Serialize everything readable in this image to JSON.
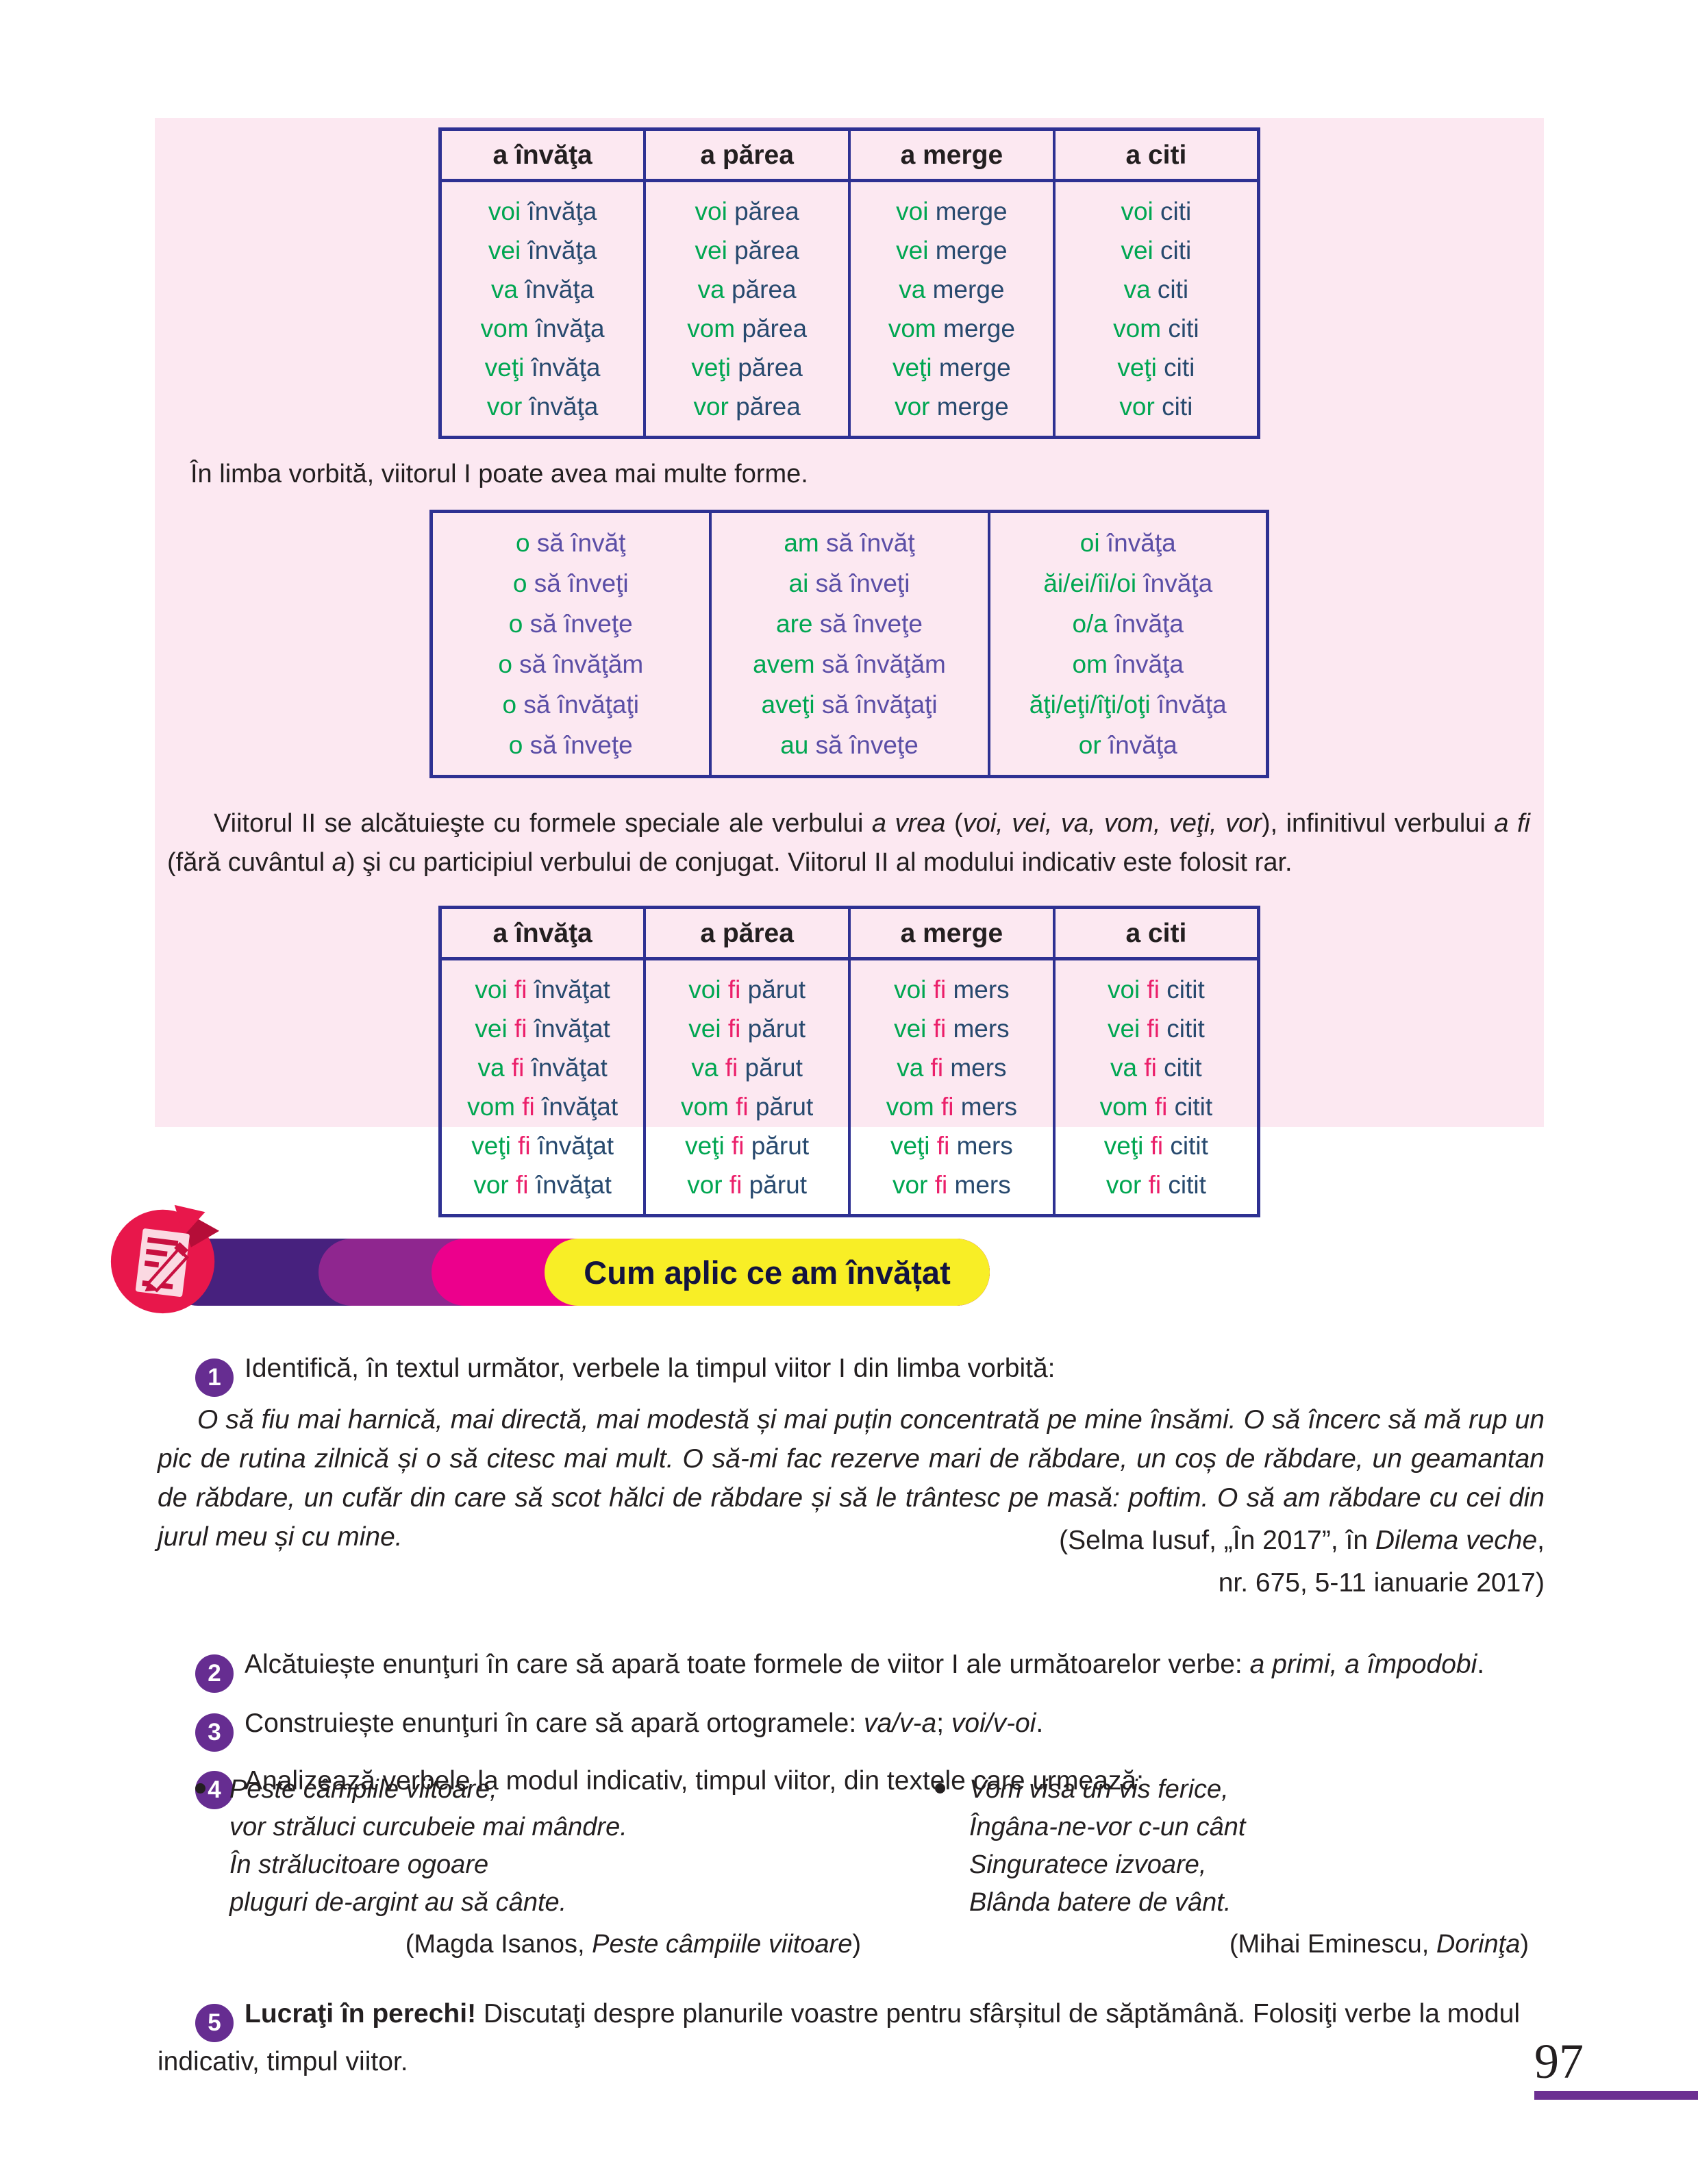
{
  "colors": {
    "green": "#00a651",
    "navy": "#27496e",
    "violet": "#5b4ea6",
    "magenta": "#eb1f6a",
    "table_border": "#2e3192",
    "panel_bg": "#fce8f1",
    "text": "#231f20",
    "banner_purple_dark": "#47217e",
    "banner_purple": "#8f268f",
    "banner_magenta": "#ec008c",
    "banner_yellow": "#f8ee26",
    "badge_purple": "#662d91",
    "icon_red": "#e8174b",
    "rule_purple": "#6c2f92"
  },
  "panel": {
    "table1": {
      "headers": [
        "a învăţa",
        "a părea",
        "a merge",
        "a citi"
      ],
      "rows": [
        [
          [
            [
              "voi",
              "g"
            ],
            [
              " învăţa",
              "n"
            ]
          ],
          [
            [
              "voi",
              "g"
            ],
            [
              " părea",
              "n"
            ]
          ],
          [
            [
              "voi",
              "g"
            ],
            [
              " merge",
              "n"
            ]
          ],
          [
            [
              "voi",
              "g"
            ],
            [
              " citi",
              "n"
            ]
          ]
        ],
        [
          [
            [
              "vei",
              "g"
            ],
            [
              " învăţa",
              "n"
            ]
          ],
          [
            [
              "vei",
              "g"
            ],
            [
              " părea",
              "n"
            ]
          ],
          [
            [
              "vei",
              "g"
            ],
            [
              " merge",
              "n"
            ]
          ],
          [
            [
              "vei",
              "g"
            ],
            [
              " citi",
              "n"
            ]
          ]
        ],
        [
          [
            [
              "va",
              "g"
            ],
            [
              " învăţa",
              "n"
            ]
          ],
          [
            [
              "va",
              "g"
            ],
            [
              " părea",
              "n"
            ]
          ],
          [
            [
              "va",
              "g"
            ],
            [
              " merge",
              "n"
            ]
          ],
          [
            [
              "va",
              "g"
            ],
            [
              " citi",
              "n"
            ]
          ]
        ],
        [
          [
            [
              "vom",
              "g"
            ],
            [
              " învăţa",
              "n"
            ]
          ],
          [
            [
              "vom",
              "g"
            ],
            [
              " părea",
              "n"
            ]
          ],
          [
            [
              "vom",
              "g"
            ],
            [
              " merge",
              "n"
            ]
          ],
          [
            [
              "vom",
              "g"
            ],
            [
              " citi",
              "n"
            ]
          ]
        ],
        [
          [
            [
              "veţi",
              "g"
            ],
            [
              " învăţa",
              "n"
            ]
          ],
          [
            [
              "veţi",
              "g"
            ],
            [
              " părea",
              "n"
            ]
          ],
          [
            [
              "veţi",
              "g"
            ],
            [
              " merge",
              "n"
            ]
          ],
          [
            [
              "veţi",
              "g"
            ],
            [
              " citi",
              "n"
            ]
          ]
        ],
        [
          [
            [
              "vor",
              "g"
            ],
            [
              " învăţa",
              "n"
            ]
          ],
          [
            [
              "vor",
              "g"
            ],
            [
              " părea",
              "n"
            ]
          ],
          [
            [
              "vor",
              "g"
            ],
            [
              " merge",
              "n"
            ]
          ],
          [
            [
              "vor",
              "g"
            ],
            [
              " citi",
              "n"
            ]
          ]
        ]
      ]
    },
    "note": "În limba vorbită, viitorul I poate avea mai multe forme.",
    "table2": {
      "rows": [
        [
          [
            [
              "o",
              "g"
            ],
            [
              " să învăţ",
              "p"
            ]
          ],
          [
            [
              "am",
              "g"
            ],
            [
              " să învăţ",
              "p"
            ]
          ],
          [
            [
              "oi",
              "g"
            ],
            [
              " învăţa",
              "p"
            ]
          ]
        ],
        [
          [
            [
              "o",
              "g"
            ],
            [
              " să înveţi",
              "p"
            ]
          ],
          [
            [
              "ai",
              "g"
            ],
            [
              " să înveţi",
              "p"
            ]
          ],
          [
            [
              "ăi/ei/îi/oi",
              "g"
            ],
            [
              " învăţa",
              "p"
            ]
          ]
        ],
        [
          [
            [
              "o",
              "g"
            ],
            [
              " să înveţe",
              "p"
            ]
          ],
          [
            [
              "are",
              "g"
            ],
            [
              " să înveţe",
              "p"
            ]
          ],
          [
            [
              "o/a",
              "g"
            ],
            [
              " învăţa",
              "p"
            ]
          ]
        ],
        [
          [
            [
              "o",
              "g"
            ],
            [
              " să învăţăm",
              "p"
            ]
          ],
          [
            [
              "avem",
              "g"
            ],
            [
              " să învăţăm",
              "p"
            ]
          ],
          [
            [
              "om",
              "g"
            ],
            [
              " învăţa",
              "p"
            ]
          ]
        ],
        [
          [
            [
              "o",
              "g"
            ],
            [
              " să învăţaţi",
              "p"
            ]
          ],
          [
            [
              "aveţi",
              "g"
            ],
            [
              " să învăţaţi",
              "p"
            ]
          ],
          [
            [
              "ăţi/eţi/îţi/oţi",
              "g"
            ],
            [
              " învăţa",
              "p"
            ]
          ]
        ],
        [
          [
            [
              "o",
              "g"
            ],
            [
              " să înveţe",
              "p"
            ]
          ],
          [
            [
              "au",
              "g"
            ],
            [
              " să înveţe",
              "p"
            ]
          ],
          [
            [
              "or",
              "g"
            ],
            [
              " învăţa",
              "p"
            ]
          ]
        ]
      ]
    },
    "paragraph": [
      [
        "Viitorul II se alcătuieşte cu formele speciale ale verbului ",
        ""
      ],
      [
        "a vrea",
        "i"
      ],
      [
        " (",
        ""
      ],
      [
        "voi, vei, va, vom, veţi, vor",
        "i"
      ],
      [
        "), infinitivul verbului ",
        ""
      ],
      [
        "a fi",
        "i"
      ],
      [
        " (fără cuvântul ",
        ""
      ],
      [
        "a",
        "i"
      ],
      [
        ") şi cu participiul verbului de conjugat. Viitorul II al modului indicativ este folosit rar.",
        ""
      ]
    ],
    "table3": {
      "headers": [
        "a învăţa",
        "a părea",
        "a merge",
        "a citi"
      ],
      "rows": [
        [
          [
            [
              "voi",
              "g"
            ],
            [
              " fi",
              "m"
            ],
            [
              " învăţat",
              "n"
            ]
          ],
          [
            [
              "voi",
              "g"
            ],
            [
              " fi",
              "m"
            ],
            [
              " părut",
              "n"
            ]
          ],
          [
            [
              "voi",
              "g"
            ],
            [
              " fi",
              "m"
            ],
            [
              " mers",
              "n"
            ]
          ],
          [
            [
              "voi",
              "g"
            ],
            [
              " fi",
              "m"
            ],
            [
              " citit",
              "n"
            ]
          ]
        ],
        [
          [
            [
              "vei",
              "g"
            ],
            [
              " fi",
              "m"
            ],
            [
              " învăţat",
              "n"
            ]
          ],
          [
            [
              "vei",
              "g"
            ],
            [
              " fi",
              "m"
            ],
            [
              " părut",
              "n"
            ]
          ],
          [
            [
              "vei",
              "g"
            ],
            [
              " fi",
              "m"
            ],
            [
              " mers",
              "n"
            ]
          ],
          [
            [
              "vei",
              "g"
            ],
            [
              " fi",
              "m"
            ],
            [
              " citit",
              "n"
            ]
          ]
        ],
        [
          [
            [
              "va",
              "g"
            ],
            [
              " fi",
              "m"
            ],
            [
              " învăţat",
              "n"
            ]
          ],
          [
            [
              "va",
              "g"
            ],
            [
              " fi",
              "m"
            ],
            [
              " părut",
              "n"
            ]
          ],
          [
            [
              "va",
              "g"
            ],
            [
              " fi",
              "m"
            ],
            [
              " mers",
              "n"
            ]
          ],
          [
            [
              "va",
              "g"
            ],
            [
              " fi",
              "m"
            ],
            [
              " citit",
              "n"
            ]
          ]
        ],
        [
          [
            [
              "vom",
              "g"
            ],
            [
              " fi",
              "m"
            ],
            [
              " învăţat",
              "n"
            ]
          ],
          [
            [
              "vom",
              "g"
            ],
            [
              " fi",
              "m"
            ],
            [
              " părut",
              "n"
            ]
          ],
          [
            [
              "vom",
              "g"
            ],
            [
              " fi",
              "m"
            ],
            [
              " mers",
              "n"
            ]
          ],
          [
            [
              "vom",
              "g"
            ],
            [
              " fi",
              "m"
            ],
            [
              " citit",
              "n"
            ]
          ]
        ],
        [
          [
            [
              "veţi",
              "g"
            ],
            [
              " fi",
              "m"
            ],
            [
              " învăţat",
              "n"
            ]
          ],
          [
            [
              "veţi",
              "g"
            ],
            [
              " fi",
              "m"
            ],
            [
              " părut",
              "n"
            ]
          ],
          [
            [
              "veţi",
              "g"
            ],
            [
              " fi",
              "m"
            ],
            [
              " mers",
              "n"
            ]
          ],
          [
            [
              "veţi",
              "g"
            ],
            [
              " fi",
              "m"
            ],
            [
              " citit",
              "n"
            ]
          ]
        ],
        [
          [
            [
              "vor",
              "g"
            ],
            [
              " fi",
              "m"
            ],
            [
              " învăţat",
              "n"
            ]
          ],
          [
            [
              "vor",
              "g"
            ],
            [
              " fi",
              "m"
            ],
            [
              " părut",
              "n"
            ]
          ],
          [
            [
              "vor",
              "g"
            ],
            [
              " fi",
              "m"
            ],
            [
              " mers",
              "n"
            ]
          ],
          [
            [
              "vor",
              "g"
            ],
            [
              " fi",
              "m"
            ],
            [
              " citit",
              "n"
            ]
          ]
        ]
      ]
    }
  },
  "banner": {
    "title": "Cum aplic ce am învățat",
    "icon": "pencil-notepad-icon"
  },
  "exercises": {
    "ex1": {
      "num": "1",
      "text": [
        [
          "Identifică, în textul următor, verbele la timpul viitor I din limba vorbită:",
          ""
        ]
      ]
    },
    "quote": [
      [
        "O să fiu mai harnică, mai directă, mai modestă și mai puțin concentrată pe mine însămi. O să încerc să mă rup un pic de rutina zilnică și o să citesc mai mult. O să-mi fac rezerve mari de răbdare, un coș de răbdare, un geamantan de răbdare, un cufăr din care să scot hălci de răbdare și să le trântesc pe masă: poftim. O să am răbdare cu cei din jurul meu și cu mine.",
        "i"
      ]
    ],
    "quote_attr1": [
      [
        "(Selma Iusuf, „În  2017”, în ",
        ""
      ],
      [
        "Dilema veche",
        "i"
      ],
      [
        ",",
        ""
      ]
    ],
    "quote_attr2": [
      [
        "nr. 675, 5-11 ianuarie 2017)",
        ""
      ]
    ],
    "ex2": {
      "num": "2",
      "text": [
        [
          "Alcătuiește enunţuri în care să apară toate formele de viitor I ale următoarelor verbe: ",
          ""
        ],
        [
          "a primi, a împodobi",
          "i"
        ],
        [
          ".",
          ""
        ]
      ]
    },
    "ex3": {
      "num": "3",
      "text": [
        [
          "Construiește enunţuri în care să apară ortogramele: ",
          ""
        ],
        [
          "va/v-a",
          "i"
        ],
        [
          "; ",
          ""
        ],
        [
          "voi/v-oi",
          "i"
        ],
        [
          ".",
          ""
        ]
      ]
    },
    "ex4": {
      "num": "4",
      "text": [
        [
          "Analizează verbele la modul indicativ, timpul viitor, din textele care urmează:",
          ""
        ]
      ]
    },
    "poem1": {
      "lines": [
        "Peste câmpiile viitoare,",
        "vor străluci curcubeie mai mândre.",
        "În strălucitoare ogoare",
        "pluguri de-argint au să cânte."
      ],
      "attr": [
        [
          "(Magda Isanos, ",
          ""
        ],
        [
          "Peste câmpiile viitoare",
          "i"
        ],
        [
          ")",
          ""
        ]
      ]
    },
    "poem2": {
      "lines": [
        "Vom visa un vis ferice,",
        "Îngâna-ne-vor c-un cânt",
        "Singuratece izvoare,",
        "Blânda batere de vânt."
      ],
      "attr": [
        [
          "(Mihai Eminescu, ",
          ""
        ],
        [
          "Dorinţa",
          "i"
        ],
        [
          ")",
          ""
        ]
      ]
    },
    "ex5": {
      "num": "5",
      "text": [
        [
          "Lucraţi în perechi!",
          "b"
        ],
        [
          " Discutaţi despre planurile voastre pentru sfârșitul de săptămână. Folosiţi verbe la modul indicativ, timpul viitor.",
          ""
        ]
      ]
    }
  },
  "footer": {
    "page_number": "97"
  }
}
